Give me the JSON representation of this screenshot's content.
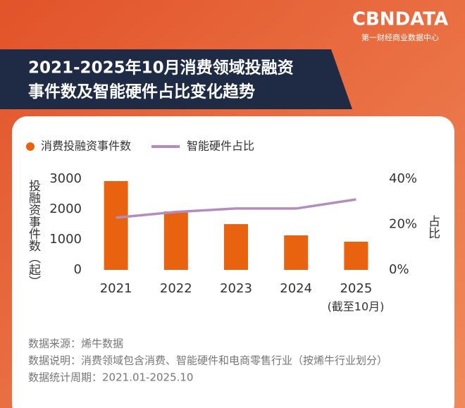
{
  "brand": {
    "logo": "CBNDATA",
    "subtitle": "第一财经商业数据中心"
  },
  "chart_data": {
    "type": "bar_line",
    "title": [
      "2021-2025年10月消费领域投融资",
      "事件数及智能硬件占比变化趋势"
    ],
    "categories": [
      "2021",
      "2022",
      "2023",
      "2024",
      "2025"
    ],
    "x_note": "(截至10月)",
    "ylabel": "投融资事件数（起）",
    "y2label": "占比",
    "series": [
      {
        "name": "消费投融资事件数",
        "color": "#e8620f",
        "values": [
          2930,
          1930,
          1510,
          1140,
          930
        ]
      },
      {
        "name": "智能硬件占比",
        "color": "#b48cc0",
        "axis": "y2",
        "values": [
          23,
          25.5,
          27,
          27,
          31
        ]
      }
    ],
    "ylim": [
      0,
      3000
    ],
    "yticks": [
      0,
      1000,
      2000,
      3000
    ],
    "y2lim": [
      0,
      40
    ],
    "y2ticks": [
      {
        "value": 0,
        "label": "0%"
      },
      {
        "value": 20,
        "label": "20%"
      },
      {
        "value": 40,
        "label": "40%"
      }
    ],
    "grid": false
  },
  "notes": [
    "数据来源：烯牛数据",
    "数据说明：消费领域包含消费、智能硬件和电商零售行业（按烯牛行业划分）",
    "数据统计周期：2021.01-2025.10"
  ]
}
